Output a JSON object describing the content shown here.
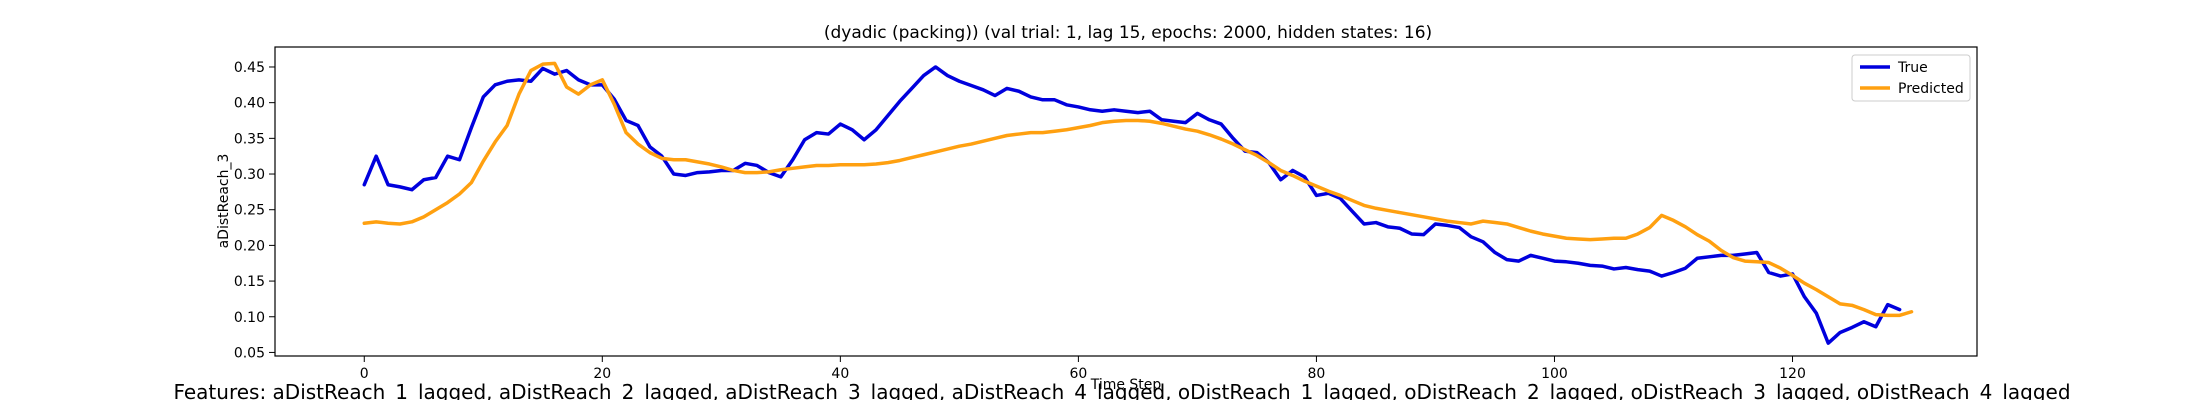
{
  "chart_data": {
    "type": "line",
    "title": "(dyadic (packing)) (val trial: 1, lag 15, epochs: 2000, hidden states: 16)",
    "xlabel": "Time Step",
    "ylabel": "aDistReach_3",
    "xlim": [
      -7.5,
      135.5
    ],
    "ylim": [
      0.045,
      0.478
    ],
    "xticks": [
      0,
      20,
      40,
      60,
      80,
      100,
      120
    ],
    "yticks": [
      0.05,
      0.1,
      0.15,
      0.2,
      0.25,
      0.3,
      0.35,
      0.4,
      0.45
    ],
    "ytick_labels": [
      "0.05",
      "0.10",
      "0.15",
      "0.20",
      "0.25",
      "0.30",
      "0.35",
      "0.40",
      "0.45"
    ],
    "xtick_labels": [
      "0",
      "20",
      "40",
      "60",
      "80",
      "100",
      "120"
    ],
    "grid": false,
    "legend_position": "top-right",
    "series": [
      {
        "name": "True",
        "color": "#0000dd",
        "values": [
          0.285,
          0.325,
          0.285,
          0.282,
          0.278,
          0.292,
          0.295,
          0.325,
          0.32,
          0.365,
          0.408,
          0.425,
          0.43,
          0.432,
          0.43,
          0.448,
          0.44,
          0.445,
          0.432,
          0.425,
          0.425,
          0.405,
          0.375,
          0.368,
          0.338,
          0.325,
          0.3,
          0.298,
          0.302,
          0.303,
          0.305,
          0.305,
          0.315,
          0.312,
          0.302,
          0.296,
          0.32,
          0.348,
          0.358,
          0.356,
          0.37,
          0.362,
          0.348,
          0.362,
          0.382,
          0.402,
          0.42,
          0.438,
          0.45,
          0.438,
          0.43,
          0.424,
          0.418,
          0.41,
          0.42,
          0.416,
          0.408,
          0.404,
          0.404,
          0.397,
          0.394,
          0.39,
          0.388,
          0.39,
          0.388,
          0.386,
          0.388,
          0.376,
          0.374,
          0.372,
          0.385,
          0.376,
          0.37,
          0.35,
          0.332,
          0.33,
          0.316,
          0.292,
          0.305,
          0.296,
          0.27,
          0.273,
          0.266,
          0.248,
          0.23,
          0.232,
          0.226,
          0.224,
          0.216,
          0.215,
          0.23,
          0.228,
          0.225,
          0.212,
          0.205,
          0.19,
          0.18,
          0.178,
          0.186,
          0.182,
          0.178,
          0.177,
          0.175,
          0.172,
          0.171,
          0.167,
          0.169,
          0.166,
          0.164,
          0.157,
          0.162,
          0.168,
          0.182,
          0.184,
          0.186,
          0.186,
          0.188,
          0.19,
          0.162,
          0.157,
          0.16,
          0.128,
          0.105,
          0.063,
          0.078,
          0.085,
          0.093,
          0.086,
          0.117,
          0.11
        ]
      },
      {
        "name": "Predicted",
        "color": "#ffa010",
        "values": [
          0.231,
          0.233,
          0.231,
          0.23,
          0.233,
          0.24,
          0.25,
          0.26,
          0.272,
          0.288,
          0.318,
          0.345,
          0.368,
          0.412,
          0.445,
          0.454,
          0.455,
          0.422,
          0.412,
          0.425,
          0.432,
          0.398,
          0.358,
          0.342,
          0.33,
          0.322,
          0.32,
          0.32,
          0.317,
          0.314,
          0.31,
          0.305,
          0.302,
          0.302,
          0.303,
          0.306,
          0.308,
          0.31,
          0.312,
          0.312,
          0.313,
          0.313,
          0.313,
          0.314,
          0.316,
          0.319,
          0.323,
          0.327,
          0.331,
          0.335,
          0.339,
          0.342,
          0.346,
          0.35,
          0.354,
          0.356,
          0.358,
          0.358,
          0.36,
          0.362,
          0.365,
          0.368,
          0.372,
          0.374,
          0.375,
          0.375,
          0.374,
          0.371,
          0.367,
          0.363,
          0.36,
          0.355,
          0.349,
          0.342,
          0.334,
          0.326,
          0.316,
          0.305,
          0.298,
          0.29,
          0.283,
          0.276,
          0.27,
          0.263,
          0.256,
          0.252,
          0.249,
          0.246,
          0.243,
          0.24,
          0.237,
          0.234,
          0.232,
          0.23,
          0.234,
          0.232,
          0.23,
          0.225,
          0.22,
          0.216,
          0.213,
          0.21,
          0.209,
          0.208,
          0.209,
          0.21,
          0.21,
          0.216,
          0.225,
          0.242,
          0.235,
          0.226,
          0.215,
          0.206,
          0.193,
          0.183,
          0.178,
          0.177,
          0.176,
          0.168,
          0.158,
          0.147,
          0.138,
          0.128,
          0.118,
          0.116,
          0.11,
          0.103,
          0.102,
          0.102,
          0.107
        ]
      }
    ],
    "footer": "Features: aDistReach_1_lagged, aDistReach_2_lagged, aDistReach_3_lagged, aDistReach_4_lagged, oDistReach_1_lagged, oDistReach_2_lagged, oDistReach_3_lagged, oDistReach_4_lagged"
  }
}
